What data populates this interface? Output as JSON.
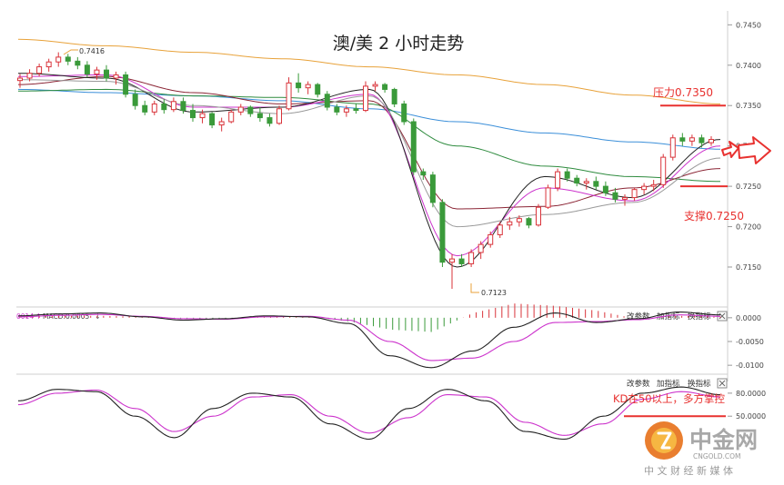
{
  "chart_data": {
    "type": "candlestick",
    "title": "澳/美 2 小时走势",
    "price_axis": {
      "ticks": [
        0.745,
        0.74,
        0.735,
        0.73,
        0.725,
        0.72,
        0.715
      ],
      "tick_labels": [
        "0.7450",
        "0.7400",
        "0.7350",
        "0.7300",
        "0.7250",
        "0.7200",
        "0.7150"
      ],
      "ylim": [
        0.7105,
        0.7465
      ]
    },
    "annotations": {
      "high_label": "0.7416",
      "low_label": "0.7123",
      "resistance": {
        "label": "压力0.7350",
        "value": 0.735,
        "color": "#e8312f"
      },
      "support": {
        "label": "支撑0.7250",
        "value": 0.725,
        "color": "#e8312f"
      },
      "kd_note": "KD在50以上，多方掌控",
      "kd_level": 50
    },
    "candles": [
      [
        0.7381,
        0.7389,
        0.7372,
        0.7384
      ],
      [
        0.7384,
        0.7395,
        0.738,
        0.739
      ],
      [
        0.739,
        0.7402,
        0.7386,
        0.7398
      ],
      [
        0.7398,
        0.7408,
        0.7392,
        0.7404
      ],
      [
        0.7404,
        0.7416,
        0.7398,
        0.741
      ],
      [
        0.741,
        0.7414,
        0.74,
        0.7405
      ],
      [
        0.7405,
        0.741,
        0.7395,
        0.74
      ],
      [
        0.74,
        0.7405,
        0.7385,
        0.7389
      ],
      [
        0.7389,
        0.7398,
        0.7382,
        0.7394
      ],
      [
        0.7394,
        0.74,
        0.738,
        0.7384
      ],
      [
        0.7384,
        0.7392,
        0.7376,
        0.7388
      ],
      [
        0.7388,
        0.7392,
        0.736,
        0.7364
      ],
      [
        0.7364,
        0.737,
        0.7345,
        0.735
      ],
      [
        0.735,
        0.7356,
        0.7338,
        0.7342
      ],
      [
        0.7342,
        0.7356,
        0.7338,
        0.7352
      ],
      [
        0.7352,
        0.7358,
        0.734,
        0.7345
      ],
      [
        0.7345,
        0.736,
        0.7342,
        0.7355
      ],
      [
        0.7355,
        0.736,
        0.734,
        0.7344
      ],
      [
        0.7344,
        0.7352,
        0.733,
        0.7335
      ],
      [
        0.7335,
        0.7345,
        0.7328,
        0.734
      ],
      [
        0.734,
        0.7342,
        0.7322,
        0.7326
      ],
      [
        0.7326,
        0.7335,
        0.7318,
        0.733
      ],
      [
        0.733,
        0.7345,
        0.7328,
        0.7342
      ],
      [
        0.7342,
        0.7352,
        0.7338,
        0.7348
      ],
      [
        0.7348,
        0.735,
        0.7336,
        0.734
      ],
      [
        0.734,
        0.7348,
        0.733,
        0.7335
      ],
      [
        0.7335,
        0.734,
        0.7324,
        0.7328
      ],
      [
        0.7328,
        0.735,
        0.7326,
        0.7346
      ],
      [
        0.7346,
        0.7385,
        0.7344,
        0.7378
      ],
      [
        0.7378,
        0.739,
        0.7366,
        0.7372
      ],
      [
        0.7372,
        0.738,
        0.7364,
        0.7376
      ],
      [
        0.7376,
        0.7378,
        0.736,
        0.7364
      ],
      [
        0.7364,
        0.7368,
        0.7344,
        0.7348
      ],
      [
        0.7348,
        0.7352,
        0.7338,
        0.7342
      ],
      [
        0.7342,
        0.735,
        0.7336,
        0.7346
      ],
      [
        0.7346,
        0.7352,
        0.734,
        0.7344
      ],
      [
        0.7344,
        0.738,
        0.7342,
        0.7374
      ],
      [
        0.7374,
        0.738,
        0.7368,
        0.7376
      ],
      [
        0.7376,
        0.7378,
        0.7366,
        0.737
      ],
      [
        0.737,
        0.7372,
        0.7348,
        0.7352
      ],
      [
        0.7352,
        0.7356,
        0.7326,
        0.733
      ],
      [
        0.733,
        0.7334,
        0.7264,
        0.7268
      ],
      [
        0.7268,
        0.7272,
        0.7258,
        0.7264
      ],
      [
        0.7264,
        0.7268,
        0.7224,
        0.723
      ],
      [
        0.723,
        0.7234,
        0.715,
        0.7156
      ],
      [
        0.7156,
        0.7166,
        0.7123,
        0.716
      ],
      [
        0.716,
        0.7166,
        0.715,
        0.7154
      ],
      [
        0.7154,
        0.7172,
        0.715,
        0.7168
      ],
      [
        0.7168,
        0.7182,
        0.716,
        0.7178
      ],
      [
        0.7178,
        0.7194,
        0.7174,
        0.719
      ],
      [
        0.719,
        0.7206,
        0.7186,
        0.7202
      ],
      [
        0.7202,
        0.7212,
        0.7196,
        0.7206
      ],
      [
        0.7206,
        0.7214,
        0.72,
        0.721
      ],
      [
        0.721,
        0.7212,
        0.7198,
        0.7202
      ],
      [
        0.7202,
        0.7228,
        0.72,
        0.7224
      ],
      [
        0.7224,
        0.7252,
        0.7222,
        0.7248
      ],
      [
        0.7248,
        0.7272,
        0.7244,
        0.7268
      ],
      [
        0.7268,
        0.7272,
        0.7256,
        0.726
      ],
      [
        0.726,
        0.7264,
        0.725,
        0.7254
      ],
      [
        0.7254,
        0.726,
        0.7246,
        0.7256
      ],
      [
        0.7256,
        0.7262,
        0.7246,
        0.725
      ],
      [
        0.725,
        0.7256,
        0.7238,
        0.7242
      ],
      [
        0.7242,
        0.7248,
        0.723,
        0.7234
      ],
      [
        0.7234,
        0.724,
        0.7226,
        0.7236
      ],
      [
        0.7236,
        0.7248,
        0.7232,
        0.7246
      ],
      [
        0.7246,
        0.7254,
        0.724,
        0.725
      ],
      [
        0.725,
        0.7258,
        0.7244,
        0.7252
      ],
      [
        0.7252,
        0.729,
        0.7248,
        0.7286
      ],
      [
        0.7286,
        0.7314,
        0.7282,
        0.731
      ],
      [
        0.731,
        0.7316,
        0.73,
        0.7306
      ],
      [
        0.7306,
        0.7314,
        0.73,
        0.731
      ],
      [
        0.731,
        0.7314,
        0.7298,
        0.7304
      ],
      [
        0.7304,
        0.7312,
        0.73,
        0.7308
      ]
    ],
    "moving_averages": [
      {
        "color": "#e8a23a",
        "values": [
          0.7432,
          0.7424,
          0.7416,
          0.7408,
          0.7398,
          0.7388,
          0.7376,
          0.7363,
          0.7352
        ]
      },
      {
        "color": "#3b8fd9",
        "values": [
          0.737,
          0.7366,
          0.7362,
          0.7356,
          0.7346,
          0.733,
          0.7316,
          0.7305,
          0.7296
        ]
      },
      {
        "color": "#2e8b3e",
        "values": [
          0.7368,
          0.737,
          0.7362,
          0.736,
          0.7352,
          0.73,
          0.7275,
          0.7262,
          0.7256
        ]
      },
      {
        "color": "#8b2535",
        "values": [
          0.7376,
          0.7386,
          0.7366,
          0.7352,
          0.7356,
          0.7222,
          0.7225,
          0.7248,
          0.7272
        ]
      },
      {
        "color": "#cc33cc",
        "values": [
          0.7386,
          0.7388,
          0.7348,
          0.7348,
          0.7364,
          0.7164,
          0.7248,
          0.7232,
          0.73
        ]
      },
      {
        "color": "#222222",
        "values": [
          0.739,
          0.7384,
          0.7342,
          0.7348,
          0.737,
          0.715,
          0.7262,
          0.7236,
          0.7308
        ]
      },
      {
        "color": "#999999",
        "values": [
          0.7382,
          0.738,
          0.735,
          0.734,
          0.7362,
          0.72,
          0.7215,
          0.723,
          0.7285
        ]
      }
    ],
    "macd_panel": {
      "label_prefix": "0014",
      "label": "MACD:0.0005",
      "buttons": [
        "改参数",
        "加指标",
        "换指标"
      ],
      "ticks": [
        0.0,
        -0.005,
        -0.01
      ],
      "tick_labels": [
        "0.0000",
        "-0.0050",
        "-0.0100"
      ],
      "ylim": [
        -0.0115,
        0.0015
      ],
      "dif": [
        0.0004,
        0.0008,
        0.001,
        0.0002,
        -0.0005,
        -0.0002,
        0.0004,
        0.0002,
        -0.0012,
        -0.008,
        -0.0105,
        -0.007,
        -0.002,
        0.001,
        -0.001,
        -0.0002,
        0.0012,
        0.0006
      ],
      "dea": [
        0.0002,
        0.0005,
        0.0007,
        0.0003,
        -0.0002,
        -0.0003,
        0.0002,
        0.0003,
        -0.0005,
        -0.005,
        -0.009,
        -0.0085,
        -0.005,
        -0.001,
        -0.0008,
        -0.0004,
        0.0006,
        0.0003
      ],
      "histogram": [
        0.0003,
        0.0004,
        0.0004,
        0.0002,
        -0.0003,
        -0.0002,
        0.0003,
        0.0002,
        -0.0008,
        -0.0025,
        -0.003,
        0.001,
        0.003,
        0.0025,
        0.0015,
        -0.0003,
        0.0004,
        0.0002
      ]
    },
    "kd_panel": {
      "buttons": [
        "改参数",
        "加指标",
        "换指标"
      ],
      "ticks": [
        80,
        50
      ],
      "tick_labels": [
        "80.0000",
        "50.0000"
      ],
      "ylim": [
        10,
        100
      ],
      "k": [
        70,
        85,
        82,
        50,
        22,
        60,
        80,
        75,
        40,
        20,
        60,
        85,
        70,
        30,
        20,
        50,
        80,
        88,
        78
      ],
      "d": [
        65,
        80,
        84,
        60,
        30,
        50,
        75,
        78,
        50,
        28,
        48,
        78,
        75,
        42,
        25,
        40,
        72,
        82,
        75
      ]
    }
  },
  "watermark": {
    "brand": "中金网",
    "domain": "CNGOLD.COM",
    "tagline": "中 文 财 经 新 媒 体"
  }
}
